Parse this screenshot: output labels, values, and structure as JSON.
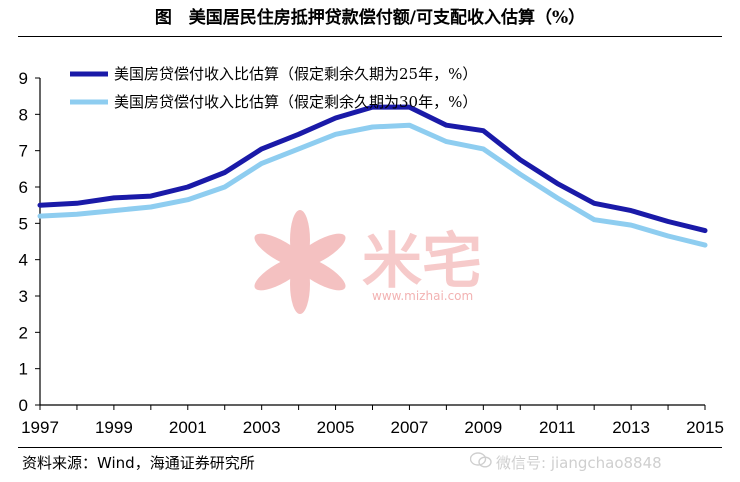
{
  "figure": {
    "title": "图　美国居民住房抵押贷款偿付额/可支配收入估算（%）",
    "source": "资料来源：Wind，海通证券研究所"
  },
  "watermarks": {
    "mizhai_text": "米宅",
    "mizhai_url": "www.mizhai.com",
    "wechat_text": "微信号: jiangchao8848",
    "color_red": "#f0a0a0",
    "color_grey": "#c8c8c8"
  },
  "colors": {
    "series_25y": "#1a1aa8",
    "series_30y": "#8ecdf0",
    "axis": "#000000"
  },
  "chart_data": {
    "type": "line",
    "x": [
      1997,
      1998,
      1999,
      2000,
      2001,
      2002,
      2003,
      2004,
      2005,
      2006,
      2007,
      2008,
      2009,
      2010,
      2011,
      2012,
      2013,
      2014,
      2015
    ],
    "xticks": [
      "1997",
      "1999",
      "2001",
      "2003",
      "2005",
      "2007",
      "2009",
      "2011",
      "2013",
      "2015"
    ],
    "yticks": [
      "0",
      "1",
      "2",
      "3",
      "4",
      "5",
      "6",
      "7",
      "8",
      "9"
    ],
    "ylim": [
      0,
      9
    ],
    "xlim": [
      1997,
      2015
    ],
    "grid": false,
    "legend_position": "top-left",
    "series": [
      {
        "name": "美国房贷偿付收入比估算（假定剩余久期为25年，%）",
        "color": "#1a1aa8",
        "values": [
          5.5,
          5.55,
          5.7,
          5.75,
          6.0,
          6.4,
          7.05,
          7.45,
          7.9,
          8.2,
          8.2,
          7.7,
          7.55,
          6.75,
          6.1,
          5.55,
          5.35,
          5.05,
          4.8
        ]
      },
      {
        "name": "美国房贷偿付收入比估算（假定剩余久期为30年，%）",
        "color": "#8ecdf0",
        "values": [
          5.2,
          5.25,
          5.35,
          5.45,
          5.65,
          6.0,
          6.65,
          7.05,
          7.45,
          7.65,
          7.7,
          7.25,
          7.05,
          6.35,
          5.7,
          5.1,
          4.95,
          4.65,
          4.4
        ]
      }
    ]
  }
}
